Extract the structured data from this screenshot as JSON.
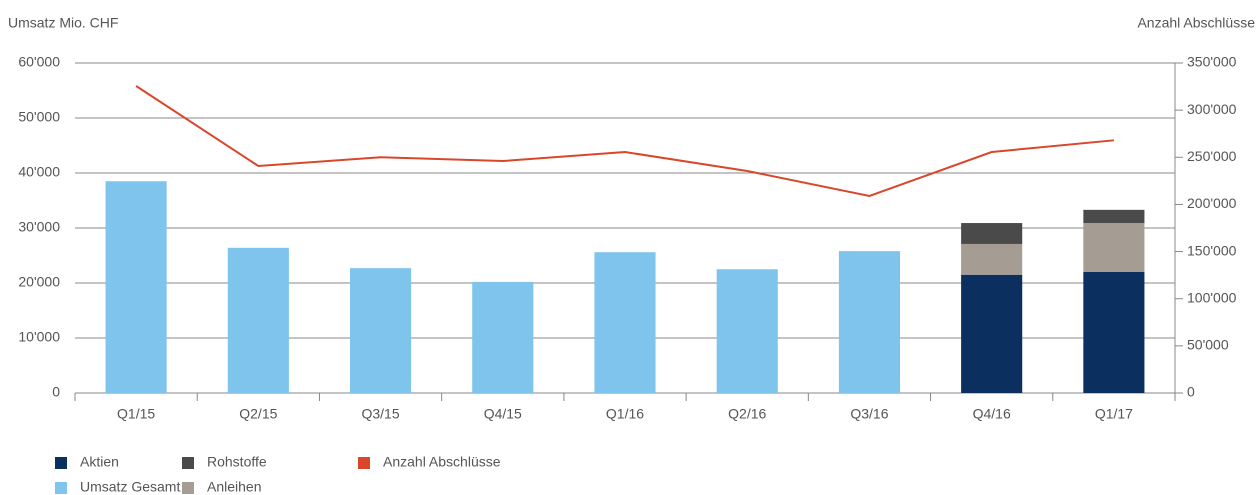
{
  "chart_data": {
    "type": "bar",
    "y_label": "Umsatz Mio. CHF",
    "y2_label": "Anzahl Abschlüsse",
    "categories": [
      "Q1/15",
      "Q2/15",
      "Q3/15",
      "Q4/15",
      "Q1/16",
      "Q2/16",
      "Q3/16",
      "Q4/16",
      "Q1/17"
    ],
    "ylim": [
      0,
      60000
    ],
    "yticks": [
      0,
      {
        "value": 10000,
        "label": "10'000"
      },
      {
        "value": 20000,
        "label": "20'000"
      },
      {
        "value": 30000,
        "label": "30'000"
      },
      {
        "value": 40000,
        "label": "40'000"
      },
      {
        "value": 50000,
        "label": "50'000"
      },
      {
        "value": 60000,
        "label": "60'000"
      }
    ],
    "y2lim": [
      0,
      350000
    ],
    "y2ticks": [
      0,
      {
        "value": 50000,
        "label": "50'000"
      },
      {
        "value": 100000,
        "label": "100'000"
      },
      {
        "value": 150000,
        "label": "150'000"
      },
      {
        "value": 200000,
        "label": "200'000"
      },
      {
        "value": 250000,
        "label": "250'000"
      },
      {
        "value": 300000,
        "label": "300'000"
      },
      {
        "value": 350000,
        "label": "350'000"
      }
    ],
    "grid": true,
    "series": [
      {
        "name": "Aktien",
        "color": "#0b2f5e",
        "values": [
          null,
          null,
          null,
          null,
          null,
          null,
          null,
          21500,
          22000
        ]
      },
      {
        "name": "Anleihen",
        "color": "#a59c94",
        "values": [
          null,
          null,
          null,
          null,
          null,
          null,
          null,
          5600,
          8900
        ]
      },
      {
        "name": "Rohstoffe",
        "color": "#4a4a4a",
        "values": [
          null,
          null,
          null,
          null,
          null,
          null,
          null,
          3800,
          2400
        ]
      },
      {
        "name": "Umsatz Gesamt",
        "color": "#7fc4ec",
        "values": [
          38500,
          26400,
          22700,
          20200,
          25600,
          22500,
          25800,
          null,
          null
        ]
      },
      {
        "name": "Anzahl Abschlüsse",
        "color": "#d9472b",
        "type": "line",
        "axis": "y2",
        "values": [
          325600,
          240800,
          250000,
          246000,
          255600,
          235500,
          209000,
          255600,
          268000
        ]
      }
    ]
  }
}
